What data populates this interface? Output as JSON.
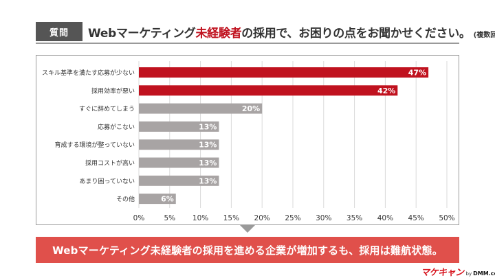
{
  "header": {
    "tag": "質問",
    "title_part1": "Webマーケティング",
    "title_highlight": "未経験者",
    "title_part2": "の採用で、お困りの点をお聞かせください。",
    "title_note": "(複数回答)"
  },
  "conclusion": "Webマーケティング未経験者の採用を進める企業が増加するも、採用は難航状態。",
  "logo": {
    "brand": "マケキャン",
    "by": "by",
    "company": "DMM.com"
  },
  "colors": {
    "highlight_bar": "#c0121f",
    "normal_bar": "#a8a4a4",
    "banner": "#e0504b",
    "accent_text": "#c0121f"
  },
  "chart_data": {
    "type": "bar",
    "orientation": "horizontal",
    "categories": [
      "スキル基準を満たす応募が少ない",
      "採用効率が悪い",
      "すぐに辞めてしまう",
      "応募がこない",
      "育成する環境が整っていない",
      "採用コストが高い",
      "あまり困っていない",
      "その他"
    ],
    "values": [
      47,
      42,
      20,
      13,
      13,
      13,
      13,
      6
    ],
    "value_labels": [
      "47%",
      "42%",
      "20%",
      "13%",
      "13%",
      "13%",
      "13%",
      "6%"
    ],
    "highlighted": [
      true,
      true,
      false,
      false,
      false,
      false,
      false,
      false
    ],
    "xlim": [
      0,
      50
    ],
    "xticks": [
      0,
      5,
      10,
      15,
      20,
      25,
      30,
      35,
      40,
      45,
      50
    ],
    "xtick_labels": [
      "0%",
      "5%",
      "10%",
      "15%",
      "20%",
      "25%",
      "30%",
      "35%",
      "40%",
      "45%",
      "50%"
    ],
    "grid": "vertical",
    "legend": "none"
  }
}
